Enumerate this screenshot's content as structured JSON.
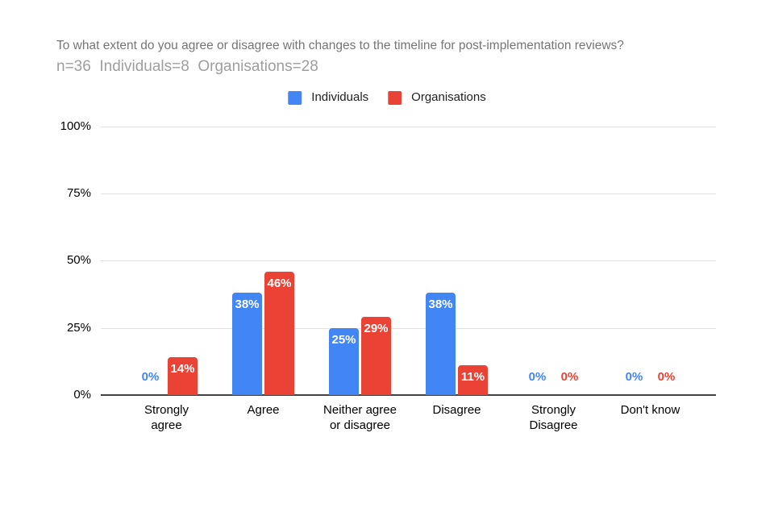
{
  "chart_data": {
    "type": "bar",
    "title": "To what extent do you agree or disagree with changes to the timeline for post-implementation reviews?",
    "subtitle": "n=36  Individuals=8  Organisations=28",
    "categories": [
      "Strongly agree",
      "Agree",
      "Neither agree or disagree",
      "Disagree",
      "Strongly Disagree",
      "Don't know"
    ],
    "categories_display": [
      "Strongly\nagree",
      "Agree",
      "Neither agree\nor disagree",
      "Disagree",
      "Strongly\nDisagree",
      "Don't know"
    ],
    "series": [
      {
        "name": "Individuals",
        "color": "#4285F4",
        "values": [
          0,
          38,
          25,
          38,
          0,
          0
        ],
        "labels": [
          "0%",
          "38%",
          "25%",
          "38%",
          "0%",
          "0%"
        ]
      },
      {
        "name": "Organisations",
        "color": "#EA4335",
        "values": [
          14,
          46,
          29,
          11,
          0,
          0
        ],
        "labels": [
          "14%",
          "46%",
          "29%",
          "11%",
          "0%",
          "0%"
        ]
      }
    ],
    "xlabel": "",
    "ylabel": "",
    "yticks": [
      "0%",
      "25%",
      "50%",
      "75%",
      "100%"
    ],
    "ylim": [
      0,
      100
    ],
    "grid": true,
    "legend_position": "top",
    "value_suffix": "%"
  },
  "colors": {
    "individuals": "#4285F4",
    "organisations": "#EA4335",
    "title_text": "#757575",
    "subtitle_text": "#9E9E9E",
    "axis_text": "#000000",
    "gridline": "#E0E0E0",
    "baseline": "#424242",
    "background": "#FFFFFF",
    "bar_label_text": "#FFFFFF"
  }
}
